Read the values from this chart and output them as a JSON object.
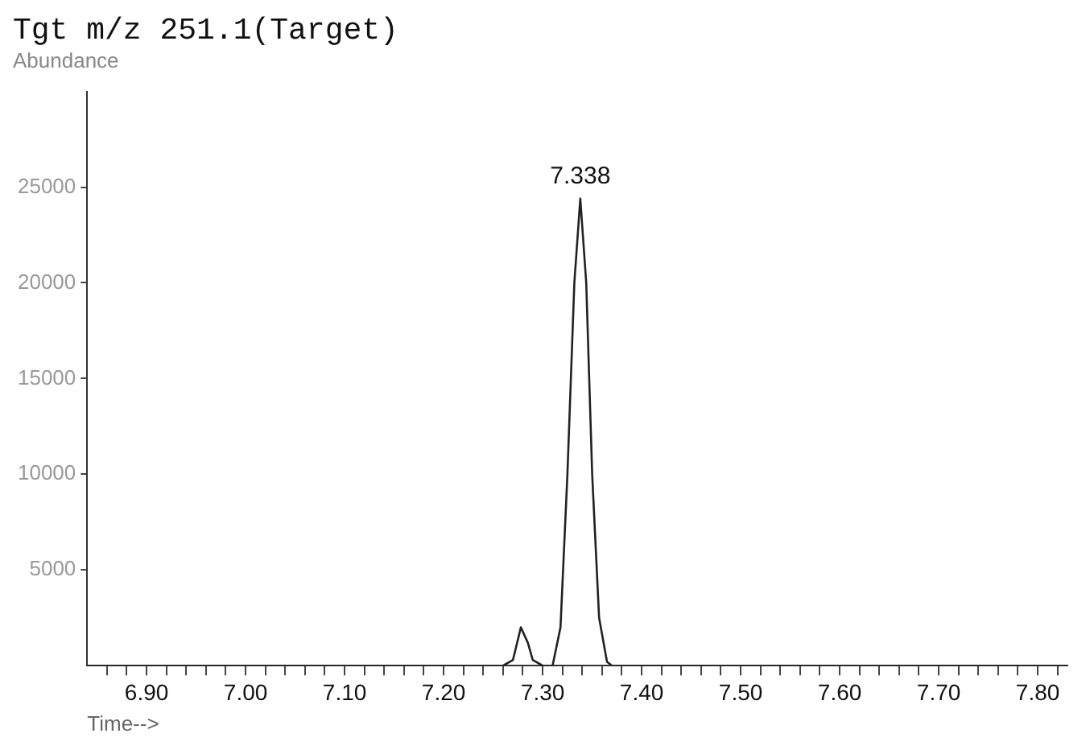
{
  "chart_data": {
    "type": "line",
    "title": "Tgt m/z 251.1(Target)",
    "ylabel": "Abundance",
    "xlabel": "Time-->",
    "x": [
      6.84,
      7.26,
      7.27,
      7.278,
      7.285,
      7.29,
      7.3,
      7.31,
      7.318,
      7.325,
      7.332,
      7.338,
      7.344,
      7.35,
      7.357,
      7.365,
      7.37,
      7.83
    ],
    "series": [
      {
        "color": "#222222",
        "values": [
          0,
          0,
          300,
          2000,
          1200,
          300,
          0,
          0,
          2000,
          10000,
          20000,
          24400,
          20000,
          10000,
          2500,
          200,
          0,
          0
        ]
      }
    ],
    "xlim": [
      6.84,
      7.83
    ],
    "xticks": [
      {
        "value": 6.86,
        "label": null
      },
      {
        "value": 6.88,
        "label": null
      },
      {
        "value": 6.9,
        "label": "6.90"
      },
      {
        "value": 6.92,
        "label": null
      },
      {
        "value": 6.94,
        "label": null
      },
      {
        "value": 6.96,
        "label": null
      },
      {
        "value": 6.98,
        "label": null
      },
      {
        "value": 7.0,
        "label": "7.00"
      },
      {
        "value": 7.02,
        "label": null
      },
      {
        "value": 7.04,
        "label": null
      },
      {
        "value": 7.06,
        "label": null
      },
      {
        "value": 7.08,
        "label": null
      },
      {
        "value": 7.1,
        "label": "7.10"
      },
      {
        "value": 7.12,
        "label": null
      },
      {
        "value": 7.14,
        "label": null
      },
      {
        "value": 7.16,
        "label": null
      },
      {
        "value": 7.18,
        "label": null
      },
      {
        "value": 7.2,
        "label": "7.20"
      },
      {
        "value": 7.22,
        "label": null
      },
      {
        "value": 7.24,
        "label": null
      },
      {
        "value": 7.26,
        "label": null
      },
      {
        "value": 7.28,
        "label": null
      },
      {
        "value": 7.3,
        "label": "7.30"
      },
      {
        "value": 7.32,
        "label": null
      },
      {
        "value": 7.34,
        "label": null
      },
      {
        "value": 7.36,
        "label": null
      },
      {
        "value": 7.38,
        "label": null
      },
      {
        "value": 7.4,
        "label": "7.40"
      },
      {
        "value": 7.42,
        "label": null
      },
      {
        "value": 7.44,
        "label": null
      },
      {
        "value": 7.46,
        "label": null
      },
      {
        "value": 7.48,
        "label": null
      },
      {
        "value": 7.5,
        "label": "7.50"
      },
      {
        "value": 7.52,
        "label": null
      },
      {
        "value": 7.54,
        "label": null
      },
      {
        "value": 7.56,
        "label": null
      },
      {
        "value": 7.58,
        "label": null
      },
      {
        "value": 7.6,
        "label": "7.60"
      },
      {
        "value": 7.62,
        "label": null
      },
      {
        "value": 7.64,
        "label": null
      },
      {
        "value": 7.66,
        "label": null
      },
      {
        "value": 7.68,
        "label": null
      },
      {
        "value": 7.7,
        "label": "7.70"
      },
      {
        "value": 7.72,
        "label": null
      },
      {
        "value": 7.74,
        "label": null
      },
      {
        "value": 7.76,
        "label": null
      },
      {
        "value": 7.78,
        "label": null
      },
      {
        "value": 7.8,
        "label": "7.80"
      },
      {
        "value": 7.82,
        "label": null
      }
    ],
    "ylim": [
      0,
      30000
    ],
    "yticks": [
      5000,
      10000,
      15000,
      20000,
      25000
    ],
    "annotations": [
      {
        "text": "7.338",
        "x": 7.338,
        "y": 24400
      }
    ],
    "grid": false,
    "legend": false,
    "marker": "none",
    "line_style": "solid"
  }
}
